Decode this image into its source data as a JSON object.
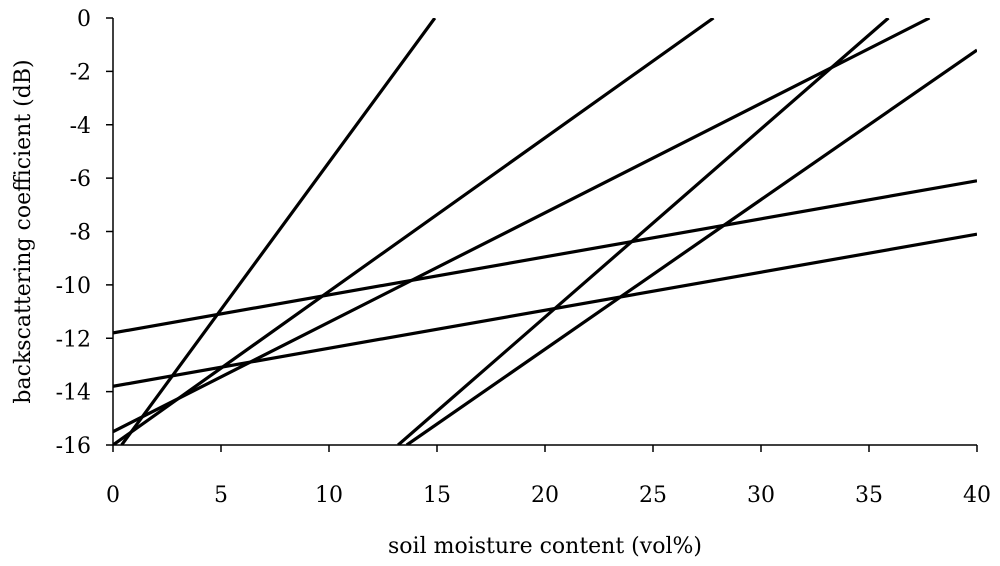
{
  "chart_data": {
    "type": "line",
    "title": "",
    "xlabel": "soil moisture content (vol%)",
    "ylabel": "backscattering coefficient (dB)",
    "xlim": [
      0,
      40
    ],
    "ylim": [
      -16,
      0
    ],
    "xticks": [
      0,
      5,
      10,
      15,
      20,
      25,
      30,
      35,
      40
    ],
    "yticks": [
      0,
      -2,
      -4,
      -6,
      -8,
      -10,
      -12,
      -14,
      -16
    ],
    "xtick_labels": [
      "0",
      "5",
      "10",
      "15",
      "20",
      "25",
      "30",
      "35",
      "40"
    ],
    "ytick_labels": [
      "0",
      "-2",
      "-4",
      "-6",
      "-8",
      "-10",
      "-12",
      "-14",
      "-16"
    ],
    "grid": false,
    "legend": "none",
    "line_color": "#000000",
    "series": [
      {
        "points": [
          [
            0.4,
            -16
          ],
          [
            14.9,
            0
          ]
        ]
      },
      {
        "points": [
          [
            0,
            -16
          ],
          [
            27.8,
            0
          ]
        ]
      },
      {
        "points": [
          [
            0,
            -15.5
          ],
          [
            37.8,
            0
          ]
        ]
      },
      {
        "points": [
          [
            13.2,
            -16
          ],
          [
            35.9,
            0
          ]
        ]
      },
      {
        "points": [
          [
            13.6,
            -16
          ],
          [
            40,
            -1.2
          ]
        ]
      },
      {
        "points": [
          [
            0,
            -11.8
          ],
          [
            40,
            -6.1
          ]
        ]
      },
      {
        "points": [
          [
            0,
            -13.8
          ],
          [
            40,
            -8.1
          ]
        ]
      }
    ]
  }
}
